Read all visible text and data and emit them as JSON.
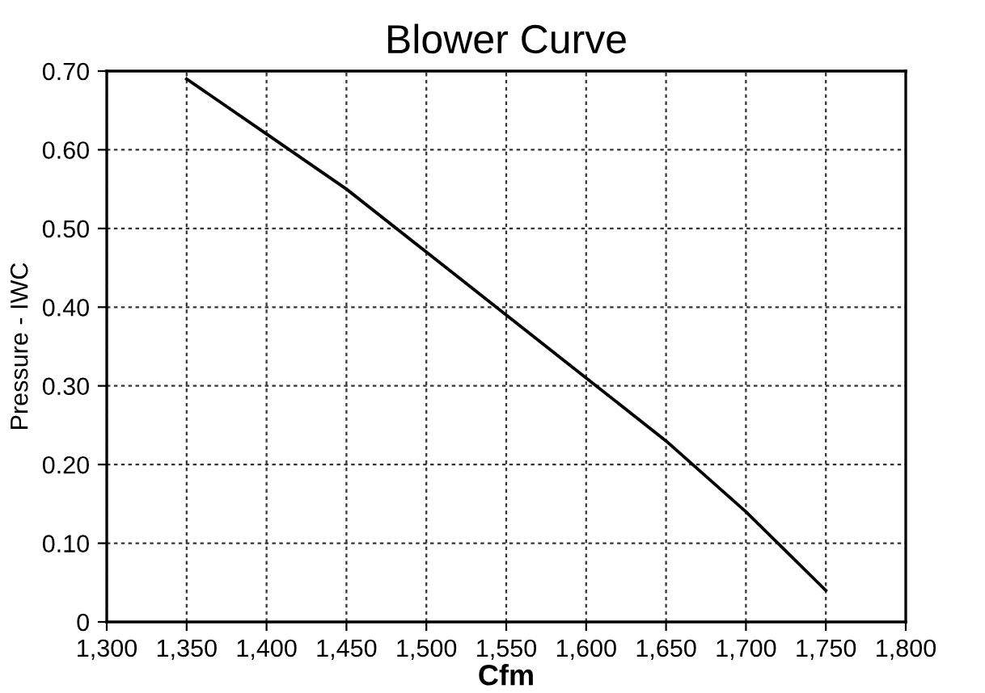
{
  "chart_data": {
    "type": "line",
    "title": "Blower Curve",
    "xlabel": "Cfm",
    "ylabel": "Pressure - IWC",
    "x": [
      1350,
      1400,
      1450,
      1500,
      1550,
      1600,
      1650,
      1700,
      1750
    ],
    "series": [
      {
        "color": "#000000",
        "values": [
          0.69,
          0.62,
          0.55,
          0.47,
          0.39,
          0.31,
          0.23,
          0.14,
          0.04
        ]
      }
    ],
    "xlim": [
      1300,
      1800
    ],
    "xticks": [
      {
        "value": 1300,
        "label": "1,300"
      },
      {
        "value": 1350,
        "label": "1,350"
      },
      {
        "value": 1400,
        "label": "1,400"
      },
      {
        "value": 1450,
        "label": "1,450"
      },
      {
        "value": 1500,
        "label": "1,500"
      },
      {
        "value": 1550,
        "label": "1,550"
      },
      {
        "value": 1600,
        "label": "1,600"
      },
      {
        "value": 1650,
        "label": "1,650"
      },
      {
        "value": 1700,
        "label": "1,700"
      },
      {
        "value": 1750,
        "label": "1,750"
      },
      {
        "value": 1800,
        "label": "1,800"
      }
    ],
    "ylim": [
      0,
      0.7
    ],
    "yticks": [
      0,
      {
        "value": 0.1,
        "label": "0.10"
      },
      {
        "value": 0.2,
        "label": "0.20"
      },
      {
        "value": 0.3,
        "label": "0.30"
      },
      {
        "value": 0.4,
        "label": "0.40"
      },
      {
        "value": 0.5,
        "label": "0.50"
      },
      {
        "value": 0.6,
        "label": "0.60"
      },
      {
        "value": 0.7,
        "label": "0.70"
      }
    ],
    "grid": true,
    "legend": false,
    "marker": "none",
    "line_style": "solid"
  }
}
